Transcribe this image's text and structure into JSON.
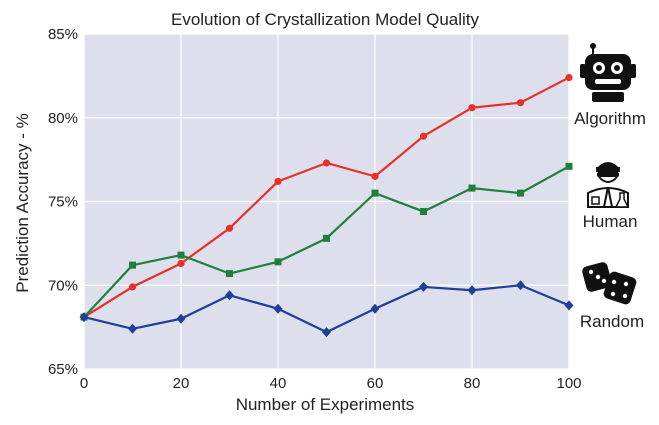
{
  "chart_data": {
    "type": "line",
    "title": "Evolution of Crystallization Model Quality",
    "xlabel": "Number of Experiments",
    "ylabel": "Prediction Accuracy - %",
    "xlim": [
      0,
      100
    ],
    "ylim": [
      65,
      85
    ],
    "x_ticks": [
      0,
      20,
      40,
      60,
      80,
      100
    ],
    "y_ticks": [
      "65%",
      "70%",
      "75%",
      "80%",
      "85%"
    ],
    "x": [
      0,
      10,
      20,
      30,
      40,
      50,
      60,
      70,
      80,
      90,
      100
    ],
    "grid": true,
    "series": [
      {
        "name": "Algorithm",
        "color": "#e8302a",
        "marker": "circle",
        "values": [
          68.1,
          69.9,
          71.3,
          73.4,
          76.2,
          77.3,
          76.5,
          78.9,
          80.6,
          80.9,
          82.4
        ]
      },
      {
        "name": "Human",
        "color": "#1f7f3b",
        "marker": "square",
        "values": [
          68.1,
          71.2,
          71.8,
          70.7,
          71.4,
          72.8,
          75.5,
          74.4,
          75.8,
          75.5,
          77.1
        ]
      },
      {
        "name": "Random",
        "color": "#1f3f9a",
        "marker": "diamond",
        "values": [
          68.1,
          67.4,
          68.0,
          69.4,
          68.6,
          67.2,
          68.6,
          69.9,
          69.7,
          70.0,
          68.8
        ]
      }
    ],
    "legend": [
      {
        "label": "Algorithm",
        "icon": "robot-icon"
      },
      {
        "label": "Human",
        "icon": "scientist-icon"
      },
      {
        "label": "Random",
        "icon": "dice-icon"
      }
    ],
    "legend_position": "right"
  }
}
